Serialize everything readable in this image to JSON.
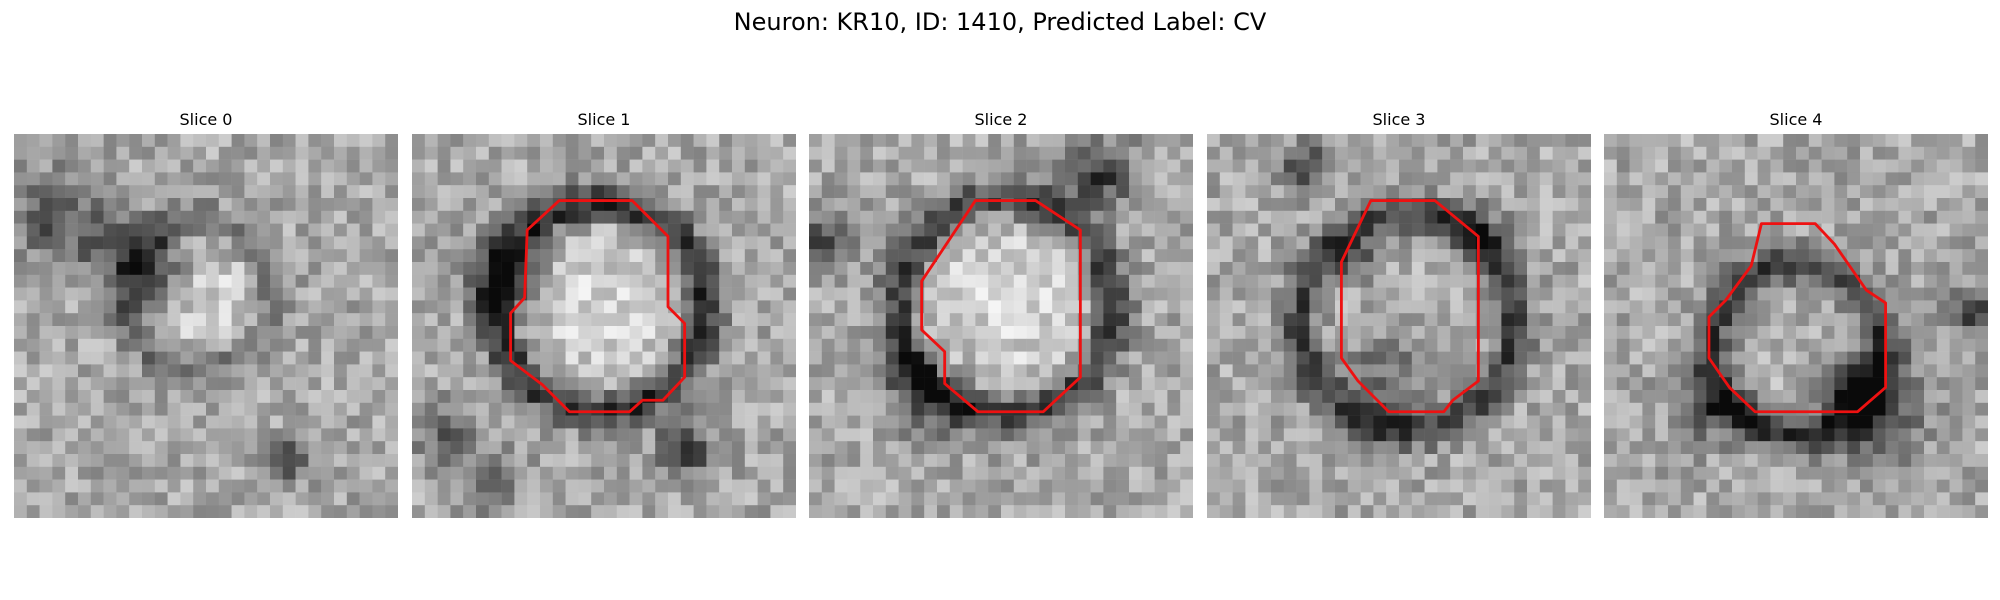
{
  "title": "Neuron: KR10, ID: 1410, Predicted Label: CV",
  "colors": {
    "contour": "#ee1111",
    "background": "#ffffff",
    "text": "#000000"
  },
  "slices": [
    {
      "label": "Slice 0",
      "has_contour": false,
      "center": [
        0.48,
        0.42
      ],
      "ring_radius": 0.19,
      "ring_strength": 0.22,
      "interior": "bright",
      "seed": 11
    },
    {
      "label": "Slice 1",
      "has_contour": true,
      "center": [
        0.49,
        0.45
      ],
      "ring_radius": 0.27,
      "ring_strength": 0.46,
      "interior": "bright",
      "seed": 23
    },
    {
      "label": "Slice 2",
      "has_contour": true,
      "center": [
        0.51,
        0.45
      ],
      "ring_radius": 0.28,
      "ring_strength": 0.42,
      "interior": "bright",
      "seed": 37
    },
    {
      "label": "Slice 3",
      "has_contour": true,
      "center": [
        0.52,
        0.49
      ],
      "ring_radius": 0.28,
      "ring_strength": 0.4,
      "interior": "medium",
      "seed": 53
    },
    {
      "label": "Slice 4",
      "has_contour": true,
      "center": [
        0.5,
        0.56
      ],
      "ring_radius": 0.22,
      "ring_strength": 0.44,
      "interior": "medium",
      "seed": 71
    }
  ]
}
